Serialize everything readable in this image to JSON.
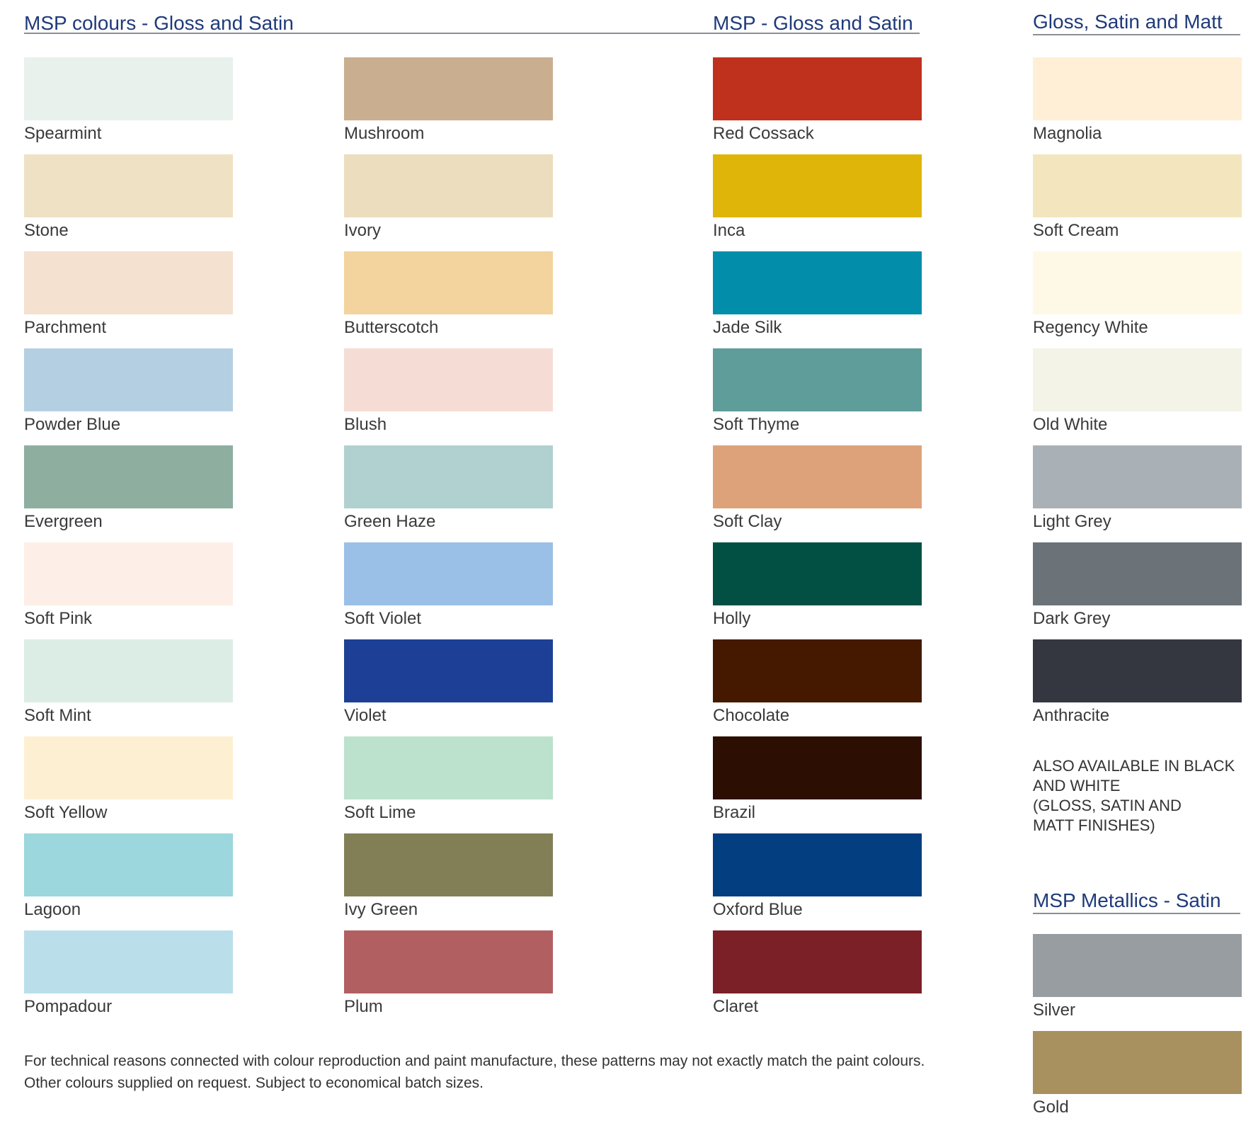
{
  "headings": {
    "main": "MSP colours - Gloss and Satin",
    "center": "MSP - Gloss and Satin",
    "right": "Gloss, Satin and Matt",
    "metallics": "MSP Metallics - Satin"
  },
  "columns": [
    {
      "swatches": [
        {
          "name": "Spearmint",
          "color": "#e8f1ec"
        },
        {
          "name": "Stone",
          "color": "#efe1c4"
        },
        {
          "name": "Parchment",
          "color": "#f4e1d0"
        },
        {
          "name": "Powder Blue",
          "color": "#b4cfe2"
        },
        {
          "name": "Evergreen",
          "color": "#8eafa0"
        },
        {
          "name": "Soft Pink",
          "color": "#fdefe7"
        },
        {
          "name": "Soft Mint",
          "color": "#dcede6"
        },
        {
          "name": "Soft Yellow",
          "color": "#fdf0d2"
        },
        {
          "name": "Lagoon",
          "color": "#9bd7dc"
        },
        {
          "name": "Pompadour",
          "color": "#badfeb"
        }
      ]
    },
    {
      "swatches": [
        {
          "name": "Mushroom",
          "color": "#c9ae90"
        },
        {
          "name": "Ivory",
          "color": "#ebddbe"
        },
        {
          "name": "Butterscotch",
          "color": "#f3d39e"
        },
        {
          "name": "Blush",
          "color": "#f5ddd6"
        },
        {
          "name": "Green Haze",
          "color": "#b0d1cf"
        },
        {
          "name": "Soft Violet",
          "color": "#9bc0e7"
        },
        {
          "name": "Violet",
          "color": "#1d4096"
        },
        {
          "name": "Soft Lime",
          "color": "#bce1cc"
        },
        {
          "name": "Ivy Green",
          "color": "#827f57"
        },
        {
          "name": "Plum",
          "color": "#b25f62"
        }
      ]
    },
    {
      "swatches": [
        {
          "name": "Red Cossack",
          "color": "#bf311d"
        },
        {
          "name": "Inca",
          "color": "#dfb50a"
        },
        {
          "name": "Jade Silk",
          "color": "#028eab"
        },
        {
          "name": "Soft Thyme",
          "color": "#5e9d9a"
        },
        {
          "name": "Soft Clay",
          "color": "#dea27a"
        },
        {
          "name": "Holly",
          "color": "#025044"
        },
        {
          "name": "Chocolate",
          "color": "#441900"
        },
        {
          "name": "Brazil",
          "color": "#2c0e02"
        },
        {
          "name": "Oxford Blue",
          "color": "#023e80"
        },
        {
          "name": "Claret",
          "color": "#7a2026"
        }
      ]
    },
    {
      "swatches": [
        {
          "name": "Magnolia",
          "color": "#feefd6"
        },
        {
          "name": "Soft Cream",
          "color": "#f3e6bf"
        },
        {
          "name": "Regency White",
          "color": "#fef8e6"
        },
        {
          "name": "Old White",
          "color": "#f4f3e8"
        },
        {
          "name": "Light Grey",
          "color": "#aab1b6"
        },
        {
          "name": "Dark Grey",
          "color": "#6b7379"
        },
        {
          "name": "Anthracite",
          "color": "#343640"
        }
      ]
    }
  ],
  "availability_note": [
    "ALSO AVAILABLE IN BLACK",
    "AND WHITE",
    "(GLOSS, SATIN AND",
    "MATT FINISHES)"
  ],
  "metallics": [
    {
      "name": "Silver",
      "color": "#979da1"
    },
    {
      "name": "Gold",
      "color": "#a8905f"
    }
  ],
  "footer": {
    "line1": "For technical reasons connected with colour reproduction and paint manufacture, these patterns may not exactly match the paint colours.",
    "line2": "Other colours supplied on request. Subject to economical batch sizes."
  }
}
